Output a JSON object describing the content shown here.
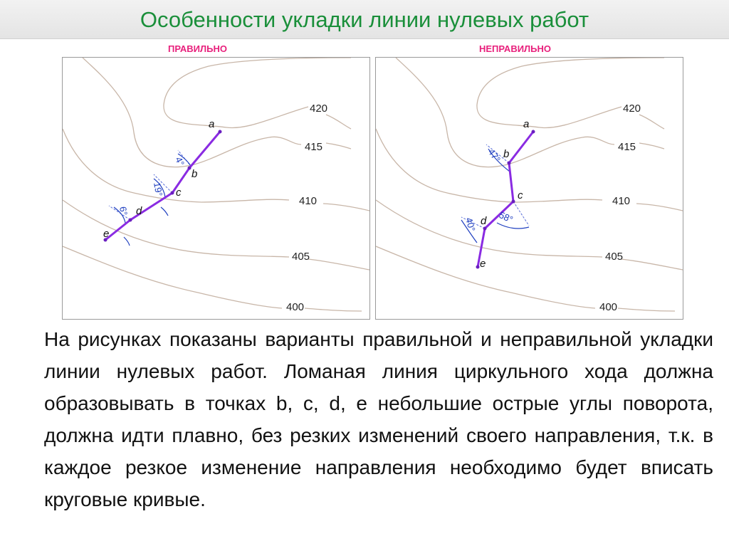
{
  "title": "Особенности укладки линии нулевых работ",
  "colors": {
    "title": "#1a8f3a",
    "labels": "#e8207c",
    "route": "#8a2be2",
    "angles": "#2040c0",
    "contours": "#c8b6a8"
  },
  "panels": {
    "correct": {
      "label": "ПРАВИЛЬНО",
      "elevations": [
        "420",
        "415",
        "410",
        "405",
        "400"
      ],
      "points": [
        "a",
        "b",
        "c",
        "d",
        "e"
      ],
      "angles": [
        "4°",
        "19°",
        "6°"
      ]
    },
    "incorrect": {
      "label": "НЕПРАВИЛЬНО",
      "elevations": [
        "420",
        "415",
        "410",
        "405",
        "400"
      ],
      "points": [
        "a",
        "b",
        "c",
        "d",
        "e"
      ],
      "angles": [
        "47°",
        "58°",
        "40°"
      ]
    }
  },
  "body_text": "На рисунках показаны варианты правильной и неправильной укладки линии нулевых работ. Ломаная линия циркульного хода должна образовывать в точках b, c, d, e небольшие острые углы поворота, должна идти плавно, без резких изменений своего направления, т.к. в каждое резкое изменение направления необходимо будет вписать круговые кривые."
}
